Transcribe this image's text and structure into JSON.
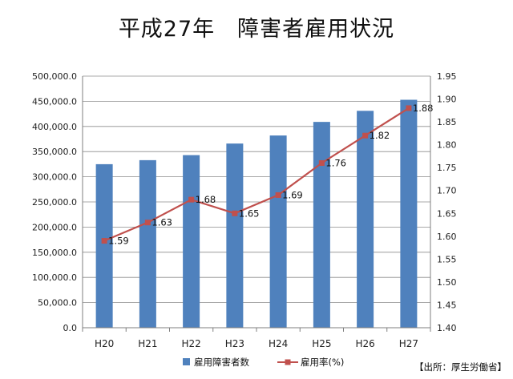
{
  "chart_data": {
    "type": "bar+line",
    "title": "平成27年　障害者雇用状況",
    "categories": [
      "H20",
      "H21",
      "H22",
      "H23",
      "H24",
      "H25",
      "H26",
      "H27"
    ],
    "series": [
      {
        "name": "雇用障害者数",
        "type": "bar",
        "axis": "left",
        "color": "#4f81bd",
        "values": [
          325000,
          333000,
          343000,
          366000,
          382000,
          409000,
          431000,
          453000
        ]
      },
      {
        "name": "雇用率(%)",
        "type": "line",
        "axis": "right",
        "color": "#c0504d",
        "values": [
          1.59,
          1.63,
          1.68,
          1.65,
          1.69,
          1.76,
          1.82,
          1.88
        ],
        "data_labels": [
          "1.59",
          "1.63",
          "1.68",
          "1.65",
          "1.69",
          "1.76",
          "1.82",
          "1.88"
        ]
      }
    ],
    "y_left": {
      "lim": [
        0,
        500000
      ],
      "ticks": [
        "0.0",
        "50,000.0",
        "100,000.0",
        "150,000.0",
        "200,000.0",
        "250,000.0",
        "300,000.0",
        "350,000.0",
        "400,000.0",
        "450,000.0",
        "500,000.0"
      ]
    },
    "y_right": {
      "lim": [
        1.4,
        1.95
      ],
      "ticks": [
        "1.40",
        "1.45",
        "1.50",
        "1.55",
        "1.60",
        "1.65",
        "1.70",
        "1.75",
        "1.80",
        "1.85",
        "1.90",
        "1.95"
      ]
    },
    "grid": true,
    "legend": "bottom"
  },
  "source_note": "【出所：厚生労働省】"
}
